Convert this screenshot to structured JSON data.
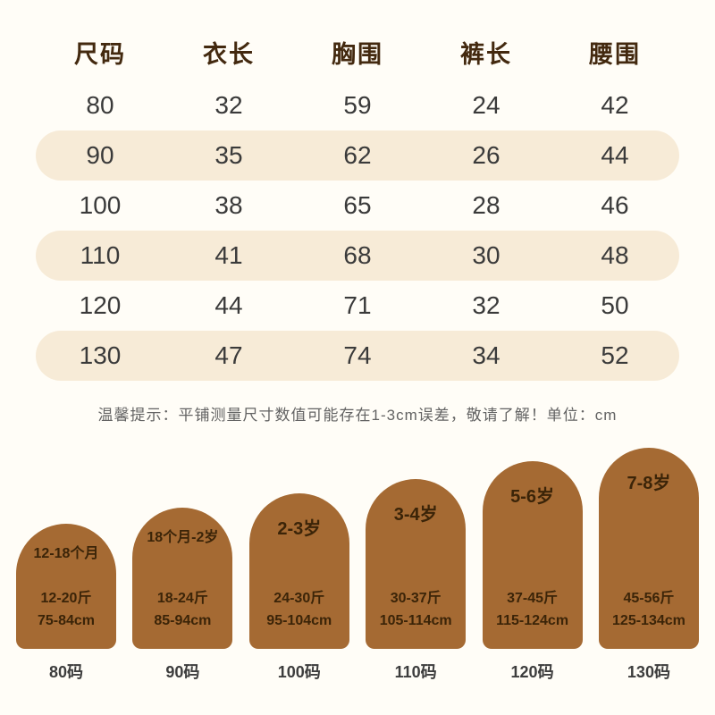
{
  "table": {
    "headers": [
      "尺码",
      "衣长",
      "胸围",
      "裤长",
      "腰围"
    ],
    "rows": [
      [
        "80",
        "32",
        "59",
        "24",
        "42"
      ],
      [
        "90",
        "35",
        "62",
        "26",
        "44"
      ],
      [
        "100",
        "38",
        "65",
        "28",
        "46"
      ],
      [
        "110",
        "41",
        "68",
        "30",
        "48"
      ],
      [
        "120",
        "44",
        "71",
        "32",
        "50"
      ],
      [
        "130",
        "47",
        "74",
        "34",
        "52"
      ]
    ]
  },
  "note": "温馨提示：平铺测量尺寸数值可能存在1-3cm误差，敬请了解！单位：cm",
  "guide": {
    "items": [
      {
        "age": "12-18个月",
        "weight": "12-20斤",
        "height": "75-84cm",
        "size": "80码"
      },
      {
        "age": "18个月-2岁",
        "weight": "18-24斤",
        "height": "85-94cm",
        "size": "90码"
      },
      {
        "age": "2-3岁",
        "weight": "24-30斤",
        "height": "95-104cm",
        "size": "100码"
      },
      {
        "age": "3-4岁",
        "weight": "30-37斤",
        "height": "105-114cm",
        "size": "110码"
      },
      {
        "age": "5-6岁",
        "weight": "37-45斤",
        "height": "115-124cm",
        "size": "120码"
      },
      {
        "age": "7-8岁",
        "weight": "45-56斤",
        "height": "125-134cm",
        "size": "130码"
      }
    ]
  },
  "colors": {
    "background": "#fffdf7",
    "row_highlight": "#f7ebd7",
    "arch_brown": "#a56a33",
    "header_text": "#43290f",
    "arch_text": "#3b2408"
  },
  "chart_data": {
    "type": "table",
    "columns": [
      "尺码",
      "衣长",
      "胸围",
      "裤长",
      "腰围"
    ],
    "rows": [
      [
        80,
        32,
        59,
        24,
        42
      ],
      [
        90,
        35,
        62,
        26,
        44
      ],
      [
        100,
        38,
        65,
        28,
        46
      ],
      [
        110,
        41,
        68,
        30,
        48
      ],
      [
        120,
        44,
        71,
        32,
        50
      ],
      [
        130,
        47,
        74,
        34,
        52
      ]
    ],
    "unit": "cm"
  }
}
